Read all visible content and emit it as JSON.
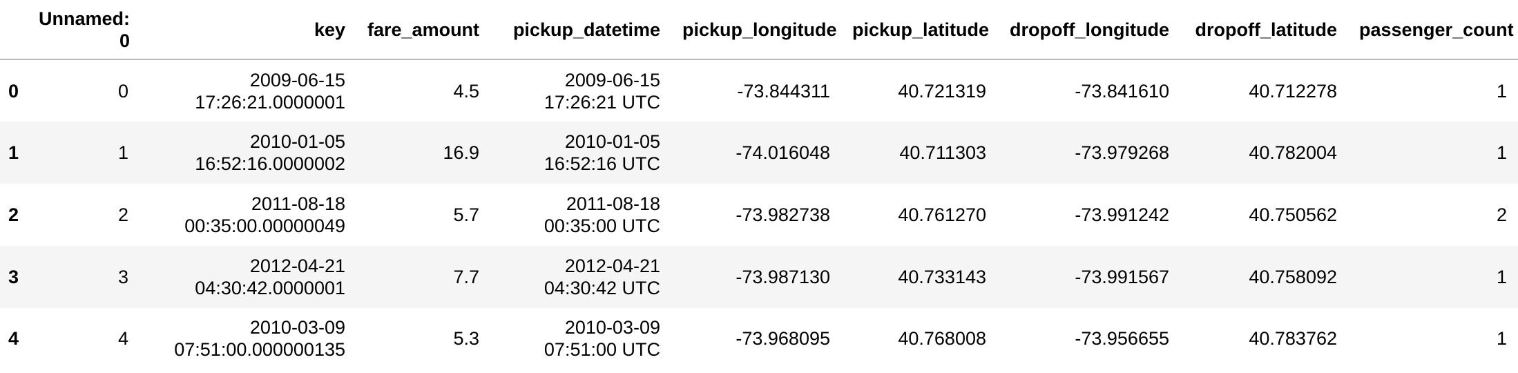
{
  "table": {
    "columns": [
      {
        "key": "index",
        "label": ""
      },
      {
        "key": "unnamed",
        "label": "Unnamed: 0"
      },
      {
        "key": "key",
        "label": "key"
      },
      {
        "key": "fare_amount",
        "label": "fare_amount"
      },
      {
        "key": "pickup_datetime",
        "label": "pickup_datetime"
      },
      {
        "key": "pickup_longitude",
        "label": "pickup_longitude"
      },
      {
        "key": "pickup_latitude",
        "label": "pickup_latitude"
      },
      {
        "key": "dropoff_longitude",
        "label": "dropoff_longitude"
      },
      {
        "key": "dropoff_latitude",
        "label": "dropoff_latitude"
      },
      {
        "key": "passenger_count",
        "label": "passenger_count"
      }
    ],
    "header_unnamed_parts": [
      "Unnamed:",
      "0"
    ],
    "rows": [
      {
        "index": "0",
        "unnamed": "0",
        "key": [
          "2009-06-15",
          "17:26:21.0000001"
        ],
        "fare_amount": "4.5",
        "pickup_datetime": [
          "2009-06-15",
          "17:26:21 UTC"
        ],
        "pickup_longitude": "-73.844311",
        "pickup_latitude": "40.721319",
        "dropoff_longitude": "-73.841610",
        "dropoff_latitude": "40.712278",
        "passenger_count": "1"
      },
      {
        "index": "1",
        "unnamed": "1",
        "key": [
          "2010-01-05",
          "16:52:16.0000002"
        ],
        "fare_amount": "16.9",
        "pickup_datetime": [
          "2010-01-05",
          "16:52:16 UTC"
        ],
        "pickup_longitude": "-74.016048",
        "pickup_latitude": "40.711303",
        "dropoff_longitude": "-73.979268",
        "dropoff_latitude": "40.782004",
        "passenger_count": "1"
      },
      {
        "index": "2",
        "unnamed": "2",
        "key": [
          "2011-08-18",
          "00:35:00.00000049"
        ],
        "fare_amount": "5.7",
        "pickup_datetime": [
          "2011-08-18",
          "00:35:00 UTC"
        ],
        "pickup_longitude": "-73.982738",
        "pickup_latitude": "40.761270",
        "dropoff_longitude": "-73.991242",
        "dropoff_latitude": "40.750562",
        "passenger_count": "2"
      },
      {
        "index": "3",
        "unnamed": "3",
        "key": [
          "2012-04-21",
          "04:30:42.0000001"
        ],
        "fare_amount": "7.7",
        "pickup_datetime": [
          "2012-04-21",
          "04:30:42 UTC"
        ],
        "pickup_longitude": "-73.987130",
        "pickup_latitude": "40.733143",
        "dropoff_longitude": "-73.991567",
        "dropoff_latitude": "40.758092",
        "passenger_count": "1"
      },
      {
        "index": "4",
        "unnamed": "4",
        "key": [
          "2010-03-09",
          "07:51:00.000000135"
        ],
        "fare_amount": "5.3",
        "pickup_datetime": [
          "2010-03-09",
          "07:51:00 UTC"
        ],
        "pickup_longitude": "-73.968095",
        "pickup_latitude": "40.768008",
        "dropoff_longitude": "-73.956655",
        "dropoff_latitude": "40.783762",
        "passenger_count": "1"
      }
    ]
  }
}
